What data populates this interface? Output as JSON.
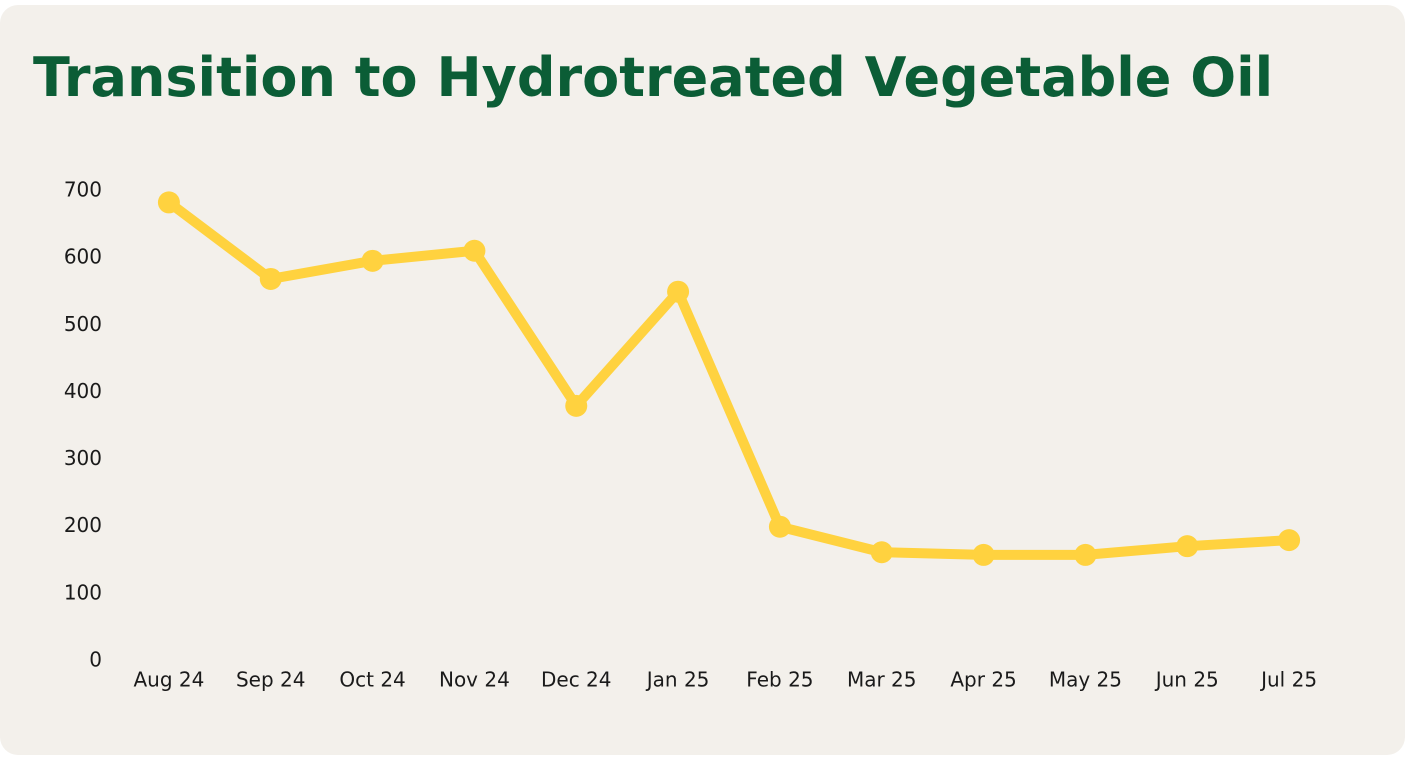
{
  "chart_data": {
    "type": "line",
    "title": "Transition to Hydrotreated Vegetable Oil",
    "categories": [
      "Aug 24",
      "Sep 24",
      "Oct 24",
      "Nov 24",
      "Dec 24",
      "Jan 25",
      "Feb 25",
      "Mar 25",
      "Apr 25",
      "May 25",
      "Jun 25",
      "Jul 25"
    ],
    "series": [
      {
        "color": "#ffd23f",
        "values": [
          683,
          569,
          596,
          611,
          380,
          550,
          200,
          162,
          158,
          158,
          171,
          180
        ]
      }
    ],
    "ylim": [
      0,
      700
    ],
    "yticks": [
      0,
      100,
      200,
      300,
      400,
      500,
      600,
      700
    ],
    "grid": false
  }
}
